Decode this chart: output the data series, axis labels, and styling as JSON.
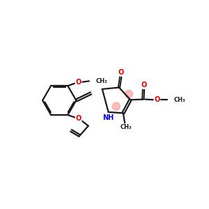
{
  "bg_color": "#ffffff",
  "bond_color": "#1a1a1a",
  "o_color": "#cc0000",
  "n_color": "#0000cc",
  "highlight_color": "#ff9999",
  "lw": 1.6,
  "fs": 7.0,
  "sfs": 6.0,
  "xlim": [
    0,
    10
  ],
  "ylim": [
    0,
    10
  ]
}
